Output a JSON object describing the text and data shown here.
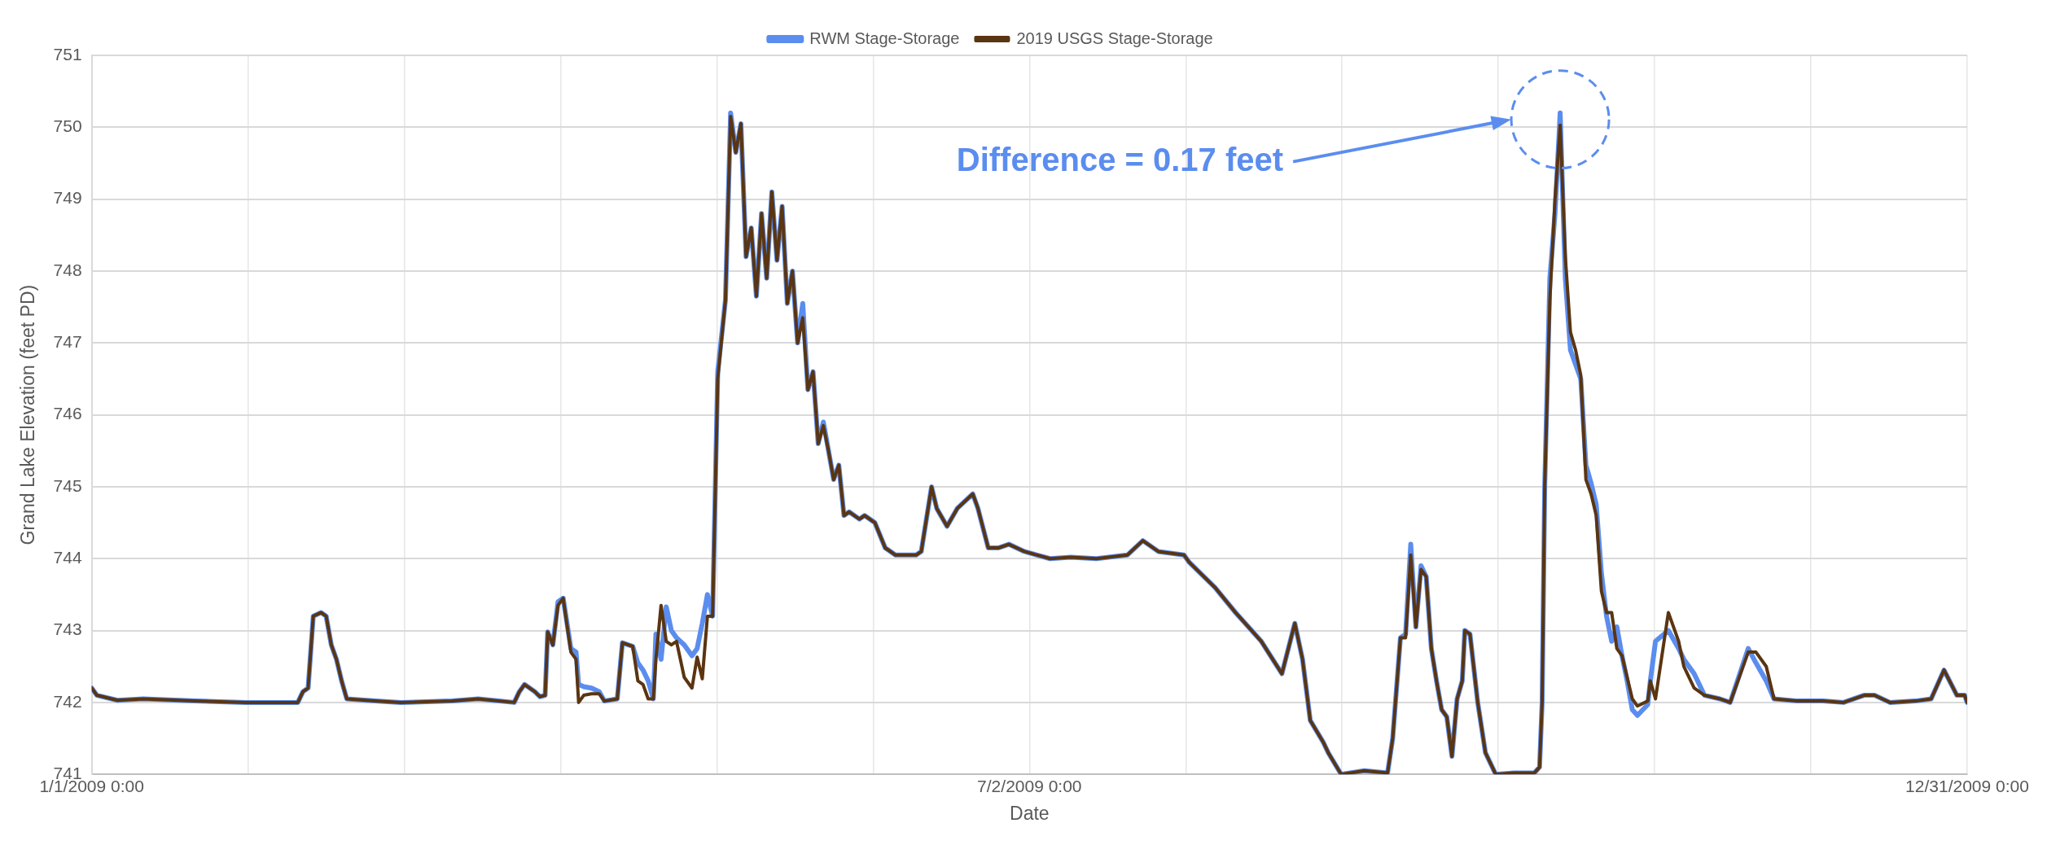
{
  "chart_data": {
    "type": "line",
    "xlabel": "Date",
    "ylabel": "Grand Lake Elevation (feet PD)",
    "x": [
      "2009-01-01T00:00",
      "2009-01-02",
      "2009-01-06",
      "2009-01-11",
      "2009-01-21",
      "2009-01-31",
      "2009-02-10",
      "2009-02-11",
      "2009-02-12",
      "2009-02-13",
      "2009-02-14T12:00",
      "2009-02-15T12:00",
      "2009-02-16T12:00",
      "2009-02-17T12:00",
      "2009-02-18T12:00",
      "2009-02-19T12:00",
      "2009-02-25",
      "2009-03-02",
      "2009-03-12",
      "2009-03-17",
      "2009-03-24",
      "2009-03-25",
      "2009-03-26",
      "2009-03-28",
      "2009-03-29",
      "2009-03-30",
      "2009-03-30T12:00",
      "2009-03-31T12:00",
      "2009-04-01T12:00",
      "2009-04-02T12:00",
      "2009-04-04",
      "2009-04-05",
      "2009-04-05T12:00",
      "2009-04-06T12:00",
      "2009-04-08",
      "2009-04-09T12:00",
      "2009-04-10T12:00",
      "2009-04-13",
      "2009-04-14",
      "2009-04-16",
      "2009-04-17",
      "2009-04-18",
      "2009-04-19",
      "2009-04-20",
      "2009-04-20T12:00",
      "2009-04-21T12:00",
      "2009-04-22T12:00",
      "2009-04-23T12:00",
      "2009-04-24T12:00",
      "2009-04-26",
      "2009-04-27T12:00",
      "2009-04-28T12:00",
      "2009-04-29T12:00",
      "2009-04-30T12:00",
      "2009-05-01T12:00",
      "2009-05-02T12:00",
      "2009-05-04",
      "2009-05-05",
      "2009-05-06",
      "2009-05-07",
      "2009-05-08",
      "2009-05-09",
      "2009-05-10",
      "2009-05-11",
      "2009-05-12",
      "2009-05-13",
      "2009-05-14",
      "2009-05-15",
      "2009-05-16",
      "2009-05-17",
      "2009-05-18",
      "2009-05-19",
      "2009-05-20",
      "2009-05-21",
      "2009-05-22",
      "2009-05-23",
      "2009-05-24",
      "2009-05-25",
      "2009-05-26",
      "2009-05-27",
      "2009-05-28",
      "2009-05-30",
      "2009-05-31",
      "2009-06-02",
      "2009-06-04",
      "2009-06-06",
      "2009-06-10",
      "2009-06-11",
      "2009-06-13",
      "2009-06-14",
      "2009-06-16",
      "2009-06-18",
      "2009-06-21",
      "2009-06-22",
      "2009-06-24",
      "2009-06-26",
      "2009-06-28",
      "2009-07-01",
      "2009-07-06",
      "2009-07-10",
      "2009-07-15",
      "2009-07-21",
      "2009-07-24",
      "2009-07-27",
      "2009-08-01",
      "2009-08-02",
      "2009-08-07",
      "2009-08-11",
      "2009-08-16",
      "2009-08-20",
      "2009-08-22T12:00",
      "2009-08-24",
      "2009-08-25T12:00",
      "2009-08-28",
      "2009-08-29",
      "2009-08-31T12:00",
      "2009-09-05",
      "2009-09-09T12:00",
      "2009-09-10T12:00",
      "2009-09-12",
      "2009-09-13",
      "2009-09-14",
      "2009-09-15",
      "2009-09-16",
      "2009-09-17",
      "2009-09-18",
      "2009-09-19",
      "2009-09-20",
      "2009-09-21",
      "2009-09-22",
      "2009-09-23",
      "2009-09-24",
      "2009-09-24T12:00",
      "2009-09-25T12:00",
      "2009-09-27",
      "2009-09-28T12:00",
      "2009-09-30T12:00",
      "2009-10-04",
      "2009-10-08",
      "2009-10-09",
      "2009-10-09T12:00",
      "2009-10-10",
      "2009-10-11",
      "2009-10-12",
      "2009-10-13",
      "2009-10-14",
      "2009-10-15",
      "2009-10-16",
      "2009-10-17",
      "2009-10-18",
      "2009-10-19",
      "2009-10-20",
      "2009-10-21",
      "2009-10-22",
      "2009-10-23",
      "2009-10-24",
      "2009-10-25",
      "2009-10-26",
      "2009-10-27",
      "2009-10-28",
      "2009-10-30",
      "2009-10-30T12:00",
      "2009-10-31T12:00",
      "2009-11-03",
      "2009-11-05",
      "2009-11-06",
      "2009-11-08",
      "2009-11-10",
      "2009-11-13",
      "2009-11-15",
      "2009-11-18T12:00",
      "2009-11-20",
      "2009-11-22",
      "2009-11-23T12:00",
      "2009-11-28",
      "2009-12-03",
      "2009-12-07",
      "2009-12-11",
      "2009-12-13",
      "2009-12-16",
      "2009-12-21",
      "2009-12-24",
      "2009-12-26T12:00",
      "2009-12-29",
      "2009-12-30T12:00",
      "2009-12-31"
    ],
    "series": [
      {
        "name": "RWM Stage-Storage",
        "color": "#5b8def",
        "values": [
          742.2,
          742.1,
          742.03,
          742.05,
          742.02,
          742.0,
          742.0,
          742.15,
          742.2,
          743.2,
          743.25,
          743.2,
          742.8,
          742.6,
          742.3,
          742.05,
          742.02,
          742.0,
          742.02,
          742.05,
          742.0,
          742.15,
          742.25,
          742.15,
          742.08,
          742.1,
          742.98,
          742.8,
          743.4,
          743.45,
          742.75,
          742.7,
          742.25,
          742.22,
          742.2,
          742.15,
          742.02,
          742.05,
          742.83,
          742.78,
          742.55,
          742.45,
          742.3,
          742.05,
          742.95,
          742.6,
          743.33,
          743.0,
          742.9,
          742.8,
          742.65,
          742.75,
          743.1,
          743.5,
          743.2,
          746.6,
          747.6,
          750.2,
          749.65,
          750.05,
          748.2,
          748.6,
          747.65,
          748.8,
          747.9,
          749.1,
          748.15,
          748.9,
          747.55,
          748.0,
          747.0,
          747.55,
          746.35,
          746.6,
          745.6,
          745.9,
          745.5,
          745.1,
          745.3,
          744.6,
          744.65,
          744.55,
          744.6,
          744.5,
          744.15,
          744.05,
          744.05,
          744.1,
          745.0,
          744.7,
          744.45,
          744.7,
          744.9,
          744.7,
          744.15,
          744.15,
          744.2,
          744.1,
          744.0,
          744.02,
          744.0,
          744.05,
          744.25,
          744.1,
          744.05,
          743.95,
          743.6,
          743.25,
          742.85,
          742.4,
          743.1,
          742.6,
          741.75,
          741.45,
          741.3,
          741.0,
          741.05,
          741.02,
          741.5,
          742.9,
          742.95,
          744.2,
          743.05,
          743.9,
          743.75,
          742.75,
          742.3,
          741.9,
          741.8,
          741.25,
          742.05,
          742.3,
          743.0,
          742.95,
          742.0,
          741.3,
          741.0,
          741.02,
          741.02,
          741.1,
          742.0,
          745.0,
          747.9,
          748.8,
          750.2,
          747.9,
          746.9,
          746.7,
          746.5,
          745.3,
          745.05,
          744.75,
          743.8,
          743.2,
          742.85,
          743.05,
          742.65,
          742.3,
          741.9,
          741.82,
          741.97,
          742.3,
          742.85,
          743.0,
          742.75,
          742.6,
          742.4,
          742.1,
          742.05,
          742.0,
          742.75,
          742.55,
          742.3,
          742.05,
          742.02,
          742.02,
          742.0,
          742.1,
          742.1,
          742.0,
          742.02,
          742.05,
          742.45,
          742.1,
          742.1,
          742.0
        ]
      },
      {
        "name": "2019 USGS Stage-Storage",
        "color": "#5a3511",
        "values": [
          742.2,
          742.1,
          742.03,
          742.05,
          742.02,
          742.0,
          742.0,
          742.15,
          742.2,
          743.2,
          743.25,
          743.2,
          742.8,
          742.6,
          742.3,
          742.05,
          742.02,
          742.0,
          742.02,
          742.05,
          742.0,
          742.15,
          742.25,
          742.15,
          742.08,
          742.1,
          742.98,
          742.8,
          743.35,
          743.45,
          742.7,
          742.6,
          742.0,
          742.1,
          742.12,
          742.12,
          742.02,
          742.05,
          742.83,
          742.78,
          742.3,
          742.25,
          742.05,
          742.05,
          742.6,
          743.35,
          742.85,
          742.8,
          742.85,
          742.35,
          742.2,
          742.63,
          742.33,
          743.2,
          743.2,
          746.5,
          747.6,
          750.15,
          749.65,
          750.05,
          748.2,
          748.6,
          747.65,
          748.8,
          747.9,
          749.1,
          748.15,
          748.9,
          747.55,
          748.0,
          747.0,
          747.35,
          746.35,
          746.6,
          745.6,
          745.85,
          745.5,
          745.1,
          745.3,
          744.6,
          744.65,
          744.55,
          744.6,
          744.5,
          744.15,
          744.05,
          744.05,
          744.1,
          745.0,
          744.7,
          744.45,
          744.7,
          744.9,
          744.7,
          744.15,
          744.15,
          744.2,
          744.1,
          744.0,
          744.02,
          744.0,
          744.05,
          744.25,
          744.1,
          744.05,
          743.95,
          743.6,
          743.25,
          742.85,
          742.4,
          743.1,
          742.6,
          741.75,
          741.45,
          741.3,
          741.0,
          741.05,
          741.02,
          741.5,
          742.9,
          742.9,
          744.05,
          743.05,
          743.85,
          743.75,
          742.75,
          742.3,
          741.9,
          741.8,
          741.25,
          742.05,
          742.3,
          743.0,
          742.95,
          742.0,
          741.3,
          741.0,
          741.02,
          741.02,
          741.1,
          742.0,
          745.0,
          747.6,
          749.0,
          750.03,
          748.2,
          747.15,
          746.9,
          746.55,
          745.1,
          744.9,
          744.6,
          743.55,
          743.25,
          743.25,
          742.75,
          742.65,
          742.35,
          742.05,
          741.95,
          742.02,
          742.3,
          742.05,
          743.25,
          742.85,
          742.5,
          742.2,
          742.1,
          742.05,
          742.0,
          742.7,
          742.7,
          742.5,
          742.05,
          742.02,
          742.02,
          742.0,
          742.1,
          742.1,
          742.0,
          742.02,
          742.05,
          742.45,
          742.1,
          742.1,
          742.0
        ]
      }
    ],
    "xlim": [
      "2009-01-01T00:00",
      "2009-12-31T00:00"
    ],
    "xticks": [
      {
        "value": "2009-01-01T00:00",
        "label": "1/1/2009 0:00"
      },
      {
        "value": "2009-01-31T08:00",
        "label": null
      },
      {
        "value": "2009-03-02T16:00",
        "label": null
      },
      {
        "value": "2009-04-02T00:00",
        "label": null
      },
      {
        "value": "2009-05-02T08:00",
        "label": null
      },
      {
        "value": "2009-06-01T16:00",
        "label": null
      },
      {
        "value": "2009-07-02T00:00",
        "label": "7/2/2009 0:00"
      },
      {
        "value": "2009-08-01T08:00",
        "label": null
      },
      {
        "value": "2009-08-31T16:00",
        "label": null
      },
      {
        "value": "2009-10-01T00:00",
        "label": null
      },
      {
        "value": "2009-10-31T08:00",
        "label": null
      },
      {
        "value": "2009-11-30T16:00",
        "label": null
      },
      {
        "value": "2009-12-31T00:00",
        "label": "12/31/2009 0:00"
      }
    ],
    "ylim": [
      741,
      751
    ],
    "yticks": [
      741,
      742,
      743,
      744,
      745,
      746,
      747,
      748,
      749,
      750,
      751
    ],
    "grid": true,
    "legend": "top",
    "marker": "none",
    "line_style": "solid",
    "annotations": [
      "Difference = 0.17 feet"
    ]
  }
}
